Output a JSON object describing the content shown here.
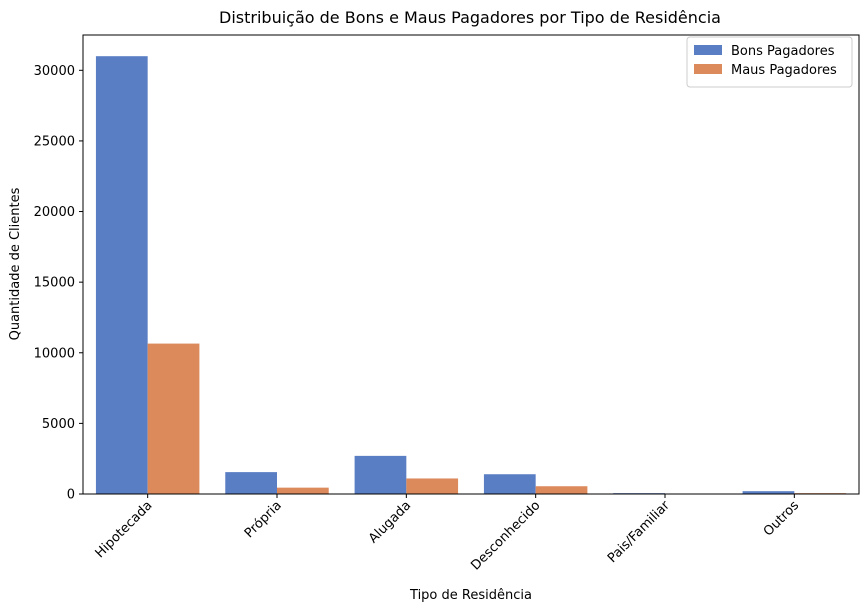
{
  "chart_data": {
    "type": "bar",
    "title": "Distribuição de Bons e Maus Pagadores por Tipo de Residência",
    "xlabel": "Tipo de Residência",
    "ylabel": "Quantidade de Clientes",
    "categories": [
      "Hipotecada",
      "Própria",
      "Alugada",
      "Desconhecido",
      "Pais/Familiar",
      "Outros"
    ],
    "series": [
      {
        "name": "Bons Pagadores",
        "color": "#5a7ec4",
        "values": [
          31000,
          1550,
          2700,
          1400,
          60,
          200
        ]
      },
      {
        "name": "Maus Pagadores",
        "color": "#dc8a5c",
        "values": [
          10650,
          450,
          1100,
          550,
          15,
          60
        ]
      }
    ],
    "ylim": [
      0,
      32500
    ],
    "yticks": [
      0,
      5000,
      10000,
      15000,
      20000,
      25000,
      30000
    ],
    "grid": false,
    "legend_position": "top-right"
  }
}
